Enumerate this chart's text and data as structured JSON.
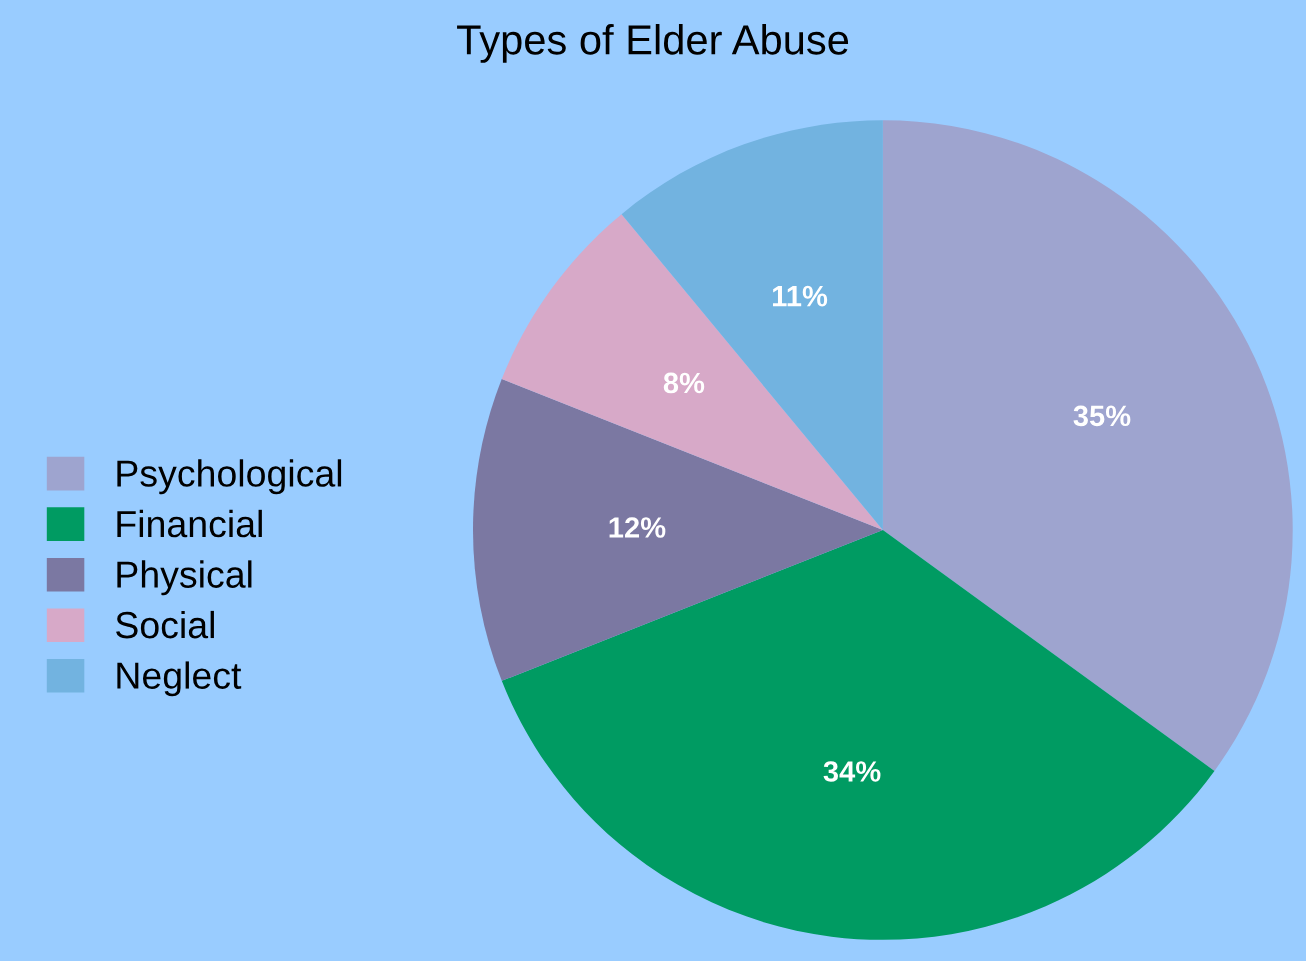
{
  "chart_data": {
    "type": "pie",
    "title": "Types of Elder Abuse",
    "categories": [
      "Psychological",
      "Financial",
      "Physical",
      "Social",
      "Neglect"
    ],
    "values": [
      35,
      34,
      12,
      8,
      11
    ],
    "colors": [
      "#9ea4cf",
      "#009b62",
      "#7b78a2",
      "#d7a9c8",
      "#72b3e0"
    ],
    "value_labels": [
      "35%",
      "34%",
      "12%",
      "8%",
      "11%"
    ],
    "legend": "left"
  }
}
